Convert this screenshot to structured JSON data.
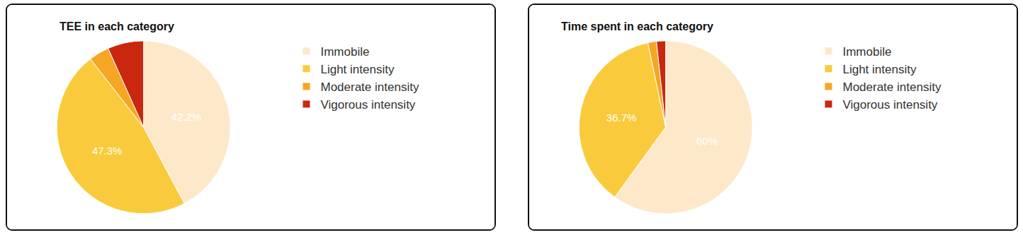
{
  "chart_data": [
    {
      "type": "pie",
      "title": "TEE in each category",
      "categories": [
        "Immobile",
        "Light intensity",
        "Moderate intensity",
        "Vigorous intensity"
      ],
      "values": [
        42.2,
        47.3,
        3.8,
        6.7
      ],
      "value_labels": [
        "42.2%",
        "47.3%",
        null,
        null
      ],
      "data_labels": true,
      "colors": [
        "#fde9c9",
        "#f9cb3c",
        "#f5a623",
        "#c9280f"
      ],
      "legend": "right"
    },
    {
      "type": "pie",
      "title": "Time spent in each category",
      "categories": [
        "Immobile",
        "Light intensity",
        "Moderate intensity",
        "Vigorous intensity"
      ],
      "values": [
        60,
        36.7,
        1.6,
        1.7
      ],
      "value_labels": [
        "60%",
        "36.7%",
        null,
        null
      ],
      "data_labels": true,
      "colors": [
        "#fde9c9",
        "#f9cb3c",
        "#f5a623",
        "#c9280f"
      ],
      "legend": "right"
    }
  ]
}
